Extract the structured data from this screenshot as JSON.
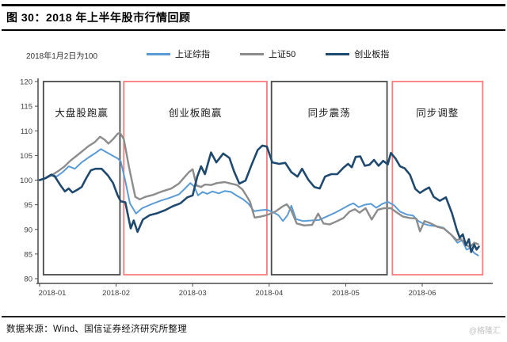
{
  "header": {
    "title": "图 30：2018 年上半年股市行情回顾"
  },
  "footer": {
    "source": "数据来源：Wind、国信证券经济研究所整理",
    "watermark": "@格隆汇"
  },
  "chart_data": {
    "type": "line",
    "title": "2018 年上半年股市行情回顾",
    "note": "2018年1月2日为100",
    "x_unit": "months since 2018-01-02 (0 = 2018-01, 5 = 2018-06)",
    "x_tick_labels": [
      "2018-01",
      "2018-02",
      "2018-03",
      "2018-04",
      "2018-05",
      "2018-06"
    ],
    "y_ticks": [
      80,
      85,
      90,
      95,
      100,
      105,
      110,
      115,
      120
    ],
    "ylim": [
      80,
      120
    ],
    "xlim": [
      0,
      5.9
    ],
    "grid": false,
    "legend_position": "top",
    "axis_color": "#4a4a4a",
    "annotations": [
      {
        "label": "大盘股跑赢",
        "x0": 0.05,
        "x1": 1.05,
        "border_color": "#4a4a4a"
      },
      {
        "label": "创业板跑赢",
        "x0": 1.1,
        "x1": 2.97,
        "border_color": "#f97c7c"
      },
      {
        "label": "同步震荡",
        "x0": 3.03,
        "x1": 4.54,
        "border_color": "#4a4a4a"
      },
      {
        "label": "同步调整",
        "x0": 4.61,
        "x1": 5.79,
        "border_color": "#f97c7c"
      }
    ],
    "series": [
      {
        "name": "上证综指",
        "color": "#5b9bd5",
        "width": 2,
        "points": [
          [
            0.0,
            100.0
          ],
          [
            0.08,
            100.5
          ],
          [
            0.16,
            101.2
          ],
          [
            0.22,
            100.7
          ],
          [
            0.3,
            101.6
          ],
          [
            0.38,
            102.8
          ],
          [
            0.46,
            102.3
          ],
          [
            0.55,
            103.6
          ],
          [
            0.64,
            104.6
          ],
          [
            0.72,
            105.4
          ],
          [
            0.8,
            106.3
          ],
          [
            0.88,
            105.6
          ],
          [
            0.96,
            104.9
          ],
          [
            1.02,
            104.4
          ],
          [
            1.06,
            103.8
          ],
          [
            1.12,
            99.8
          ],
          [
            1.18,
            95.3
          ],
          [
            1.26,
            93.2
          ],
          [
            1.34,
            94.3
          ],
          [
            1.46,
            95.1
          ],
          [
            1.58,
            95.8
          ],
          [
            1.7,
            96.4
          ],
          [
            1.82,
            97.1
          ],
          [
            1.9,
            98.3
          ],
          [
            1.97,
            99.4
          ],
          [
            2.02,
            98.7
          ],
          [
            2.07,
            96.9
          ],
          [
            2.13,
            97.6
          ],
          [
            2.19,
            97.2
          ],
          [
            2.26,
            97.7
          ],
          [
            2.34,
            97.3
          ],
          [
            2.42,
            97.8
          ],
          [
            2.5,
            97.6
          ],
          [
            2.58,
            96.8
          ],
          [
            2.66,
            96.1
          ],
          [
            2.73,
            95.2
          ],
          [
            2.8,
            93.7
          ],
          [
            2.89,
            93.9
          ],
          [
            2.97,
            94.0
          ],
          [
            3.05,
            93.5
          ],
          [
            3.12,
            92.9
          ],
          [
            3.18,
            91.7
          ],
          [
            3.24,
            92.9
          ],
          [
            3.29,
            94.8
          ],
          [
            3.35,
            92.1
          ],
          [
            3.44,
            91.7
          ],
          [
            3.55,
            91.8
          ],
          [
            3.65,
            91.9
          ],
          [
            3.75,
            92.6
          ],
          [
            3.85,
            93.3
          ],
          [
            3.96,
            94.2
          ],
          [
            4.04,
            94.9
          ],
          [
            4.1,
            95.3
          ],
          [
            4.17,
            94.5
          ],
          [
            4.25,
            95.0
          ],
          [
            4.33,
            95.2
          ],
          [
            4.4,
            94.4
          ],
          [
            4.48,
            95.2
          ],
          [
            4.55,
            95.6
          ],
          [
            4.63,
            94.9
          ],
          [
            4.71,
            93.6
          ],
          [
            4.8,
            93.0
          ],
          [
            4.88,
            92.8
          ],
          [
            4.95,
            91.7
          ],
          [
            5.02,
            91.1
          ],
          [
            5.1,
            90.8
          ],
          [
            5.2,
            90.6
          ],
          [
            5.28,
            90.3
          ],
          [
            5.38,
            88.9
          ],
          [
            5.46,
            87.3
          ],
          [
            5.52,
            87.8
          ],
          [
            5.58,
            85.9
          ],
          [
            5.63,
            86.2
          ],
          [
            5.68,
            85.2
          ],
          [
            5.73,
            84.7
          ]
        ]
      },
      {
        "name": "上证50",
        "color": "#8c8c8c",
        "width": 2.4,
        "points": [
          [
            0.0,
            100.0
          ],
          [
            0.08,
            100.4
          ],
          [
            0.16,
            101.0
          ],
          [
            0.24,
            101.8
          ],
          [
            0.32,
            102.7
          ],
          [
            0.4,
            103.9
          ],
          [
            0.48,
            104.9
          ],
          [
            0.56,
            105.9
          ],
          [
            0.64,
            106.9
          ],
          [
            0.72,
            107.7
          ],
          [
            0.79,
            108.8
          ],
          [
            0.85,
            108.2
          ],
          [
            0.9,
            107.4
          ],
          [
            0.96,
            108.3
          ],
          [
            1.02,
            109.4
          ],
          [
            1.05,
            109.6
          ],
          [
            1.1,
            108.3
          ],
          [
            1.17,
            102.5
          ],
          [
            1.25,
            96.6
          ],
          [
            1.31,
            96.1
          ],
          [
            1.38,
            96.6
          ],
          [
            1.48,
            97.0
          ],
          [
            1.6,
            97.7
          ],
          [
            1.72,
            98.3
          ],
          [
            1.82,
            99.3
          ],
          [
            1.9,
            100.7
          ],
          [
            1.95,
            101.6
          ],
          [
            2.0,
            102.2
          ],
          [
            2.05,
            98.9
          ],
          [
            2.11,
            98.6
          ],
          [
            2.16,
            99.1
          ],
          [
            2.24,
            99.0
          ],
          [
            2.32,
            99.4
          ],
          [
            2.42,
            99.6
          ],
          [
            2.5,
            99.3
          ],
          [
            2.58,
            99.0
          ],
          [
            2.65,
            98.1
          ],
          [
            2.7,
            96.9
          ],
          [
            2.75,
            95.6
          ],
          [
            2.81,
            92.4
          ],
          [
            2.89,
            92.6
          ],
          [
            2.97,
            92.9
          ],
          [
            3.08,
            93.6
          ],
          [
            3.17,
            94.6
          ],
          [
            3.23,
            95.1
          ],
          [
            3.29,
            93.8
          ],
          [
            3.36,
            91.2
          ],
          [
            3.46,
            90.8
          ],
          [
            3.56,
            90.9
          ],
          [
            3.64,
            93.2
          ],
          [
            3.71,
            91.2
          ],
          [
            3.79,
            91.0
          ],
          [
            3.89,
            91.7
          ],
          [
            3.97,
            92.3
          ],
          [
            4.05,
            93.6
          ],
          [
            4.12,
            94.1
          ],
          [
            4.18,
            93.4
          ],
          [
            4.26,
            94.3
          ],
          [
            4.34,
            92.0
          ],
          [
            4.42,
            94.0
          ],
          [
            4.5,
            94.3
          ],
          [
            4.59,
            94.3
          ],
          [
            4.67,
            93.4
          ],
          [
            4.75,
            92.6
          ],
          [
            4.84,
            92.3
          ],
          [
            4.92,
            92.2
          ],
          [
            4.97,
            89.6
          ],
          [
            5.03,
            91.7
          ],
          [
            5.1,
            91.3
          ],
          [
            5.2,
            90.5
          ],
          [
            5.28,
            90.2
          ],
          [
            5.38,
            88.9
          ],
          [
            5.45,
            87.8
          ],
          [
            5.5,
            88.1
          ],
          [
            5.57,
            86.9
          ],
          [
            5.62,
            86.4
          ],
          [
            5.68,
            87.3
          ],
          [
            5.73,
            87.0
          ]
        ]
      },
      {
        "name": "创业板指",
        "color": "#1f496e",
        "width": 2.6,
        "points": [
          [
            0.0,
            100.0
          ],
          [
            0.08,
            100.4
          ],
          [
            0.15,
            101.1
          ],
          [
            0.2,
            100.7
          ],
          [
            0.27,
            99.0
          ],
          [
            0.33,
            97.7
          ],
          [
            0.38,
            98.3
          ],
          [
            0.43,
            97.5
          ],
          [
            0.49,
            98.0
          ],
          [
            0.55,
            98.6
          ],
          [
            0.61,
            100.4
          ],
          [
            0.67,
            102.0
          ],
          [
            0.73,
            102.3
          ],
          [
            0.81,
            102.3
          ],
          [
            0.89,
            101.0
          ],
          [
            0.96,
            99.4
          ],
          [
            1.02,
            96.9
          ],
          [
            1.06,
            95.7
          ],
          [
            1.12,
            95.5
          ],
          [
            1.19,
            90.2
          ],
          [
            1.23,
            91.8
          ],
          [
            1.28,
            89.5
          ],
          [
            1.35,
            92.0
          ],
          [
            1.44,
            92.9
          ],
          [
            1.54,
            93.3
          ],
          [
            1.64,
            93.9
          ],
          [
            1.74,
            94.7
          ],
          [
            1.84,
            95.3
          ],
          [
            1.93,
            96.5
          ],
          [
            2.0,
            96.9
          ],
          [
            2.06,
            100.7
          ],
          [
            2.11,
            102.8
          ],
          [
            2.16,
            101.2
          ],
          [
            2.24,
            105.6
          ],
          [
            2.31,
            103.6
          ],
          [
            2.4,
            105.4
          ],
          [
            2.48,
            104.5
          ],
          [
            2.54,
            101.8
          ],
          [
            2.61,
            99.3
          ],
          [
            2.69,
            99.9
          ],
          [
            2.77,
            103.1
          ],
          [
            2.85,
            106.1
          ],
          [
            2.91,
            107.0
          ],
          [
            2.97,
            106.8
          ],
          [
            3.04,
            103.6
          ],
          [
            3.13,
            103.3
          ],
          [
            3.21,
            103.5
          ],
          [
            3.29,
            101.6
          ],
          [
            3.37,
            100.7
          ],
          [
            3.43,
            102.3
          ],
          [
            3.51,
            100.1
          ],
          [
            3.59,
            98.6
          ],
          [
            3.66,
            98.3
          ],
          [
            3.73,
            100.7
          ],
          [
            3.81,
            101.2
          ],
          [
            3.89,
            101.2
          ],
          [
            3.97,
            102.5
          ],
          [
            4.03,
            103.3
          ],
          [
            4.08,
            102.6
          ],
          [
            4.13,
            104.7
          ],
          [
            4.19,
            104.8
          ],
          [
            4.25,
            102.9
          ],
          [
            4.31,
            103.1
          ],
          [
            4.37,
            104.1
          ],
          [
            4.43,
            102.9
          ],
          [
            4.49,
            103.9
          ],
          [
            4.55,
            103.2
          ],
          [
            4.59,
            105.5
          ],
          [
            4.65,
            104.4
          ],
          [
            4.71,
            102.8
          ],
          [
            4.77,
            102.4
          ],
          [
            4.84,
            101.1
          ],
          [
            4.91,
            98.2
          ],
          [
            4.97,
            97.4
          ],
          [
            5.03,
            98.0
          ],
          [
            5.09,
            98.5
          ],
          [
            5.15,
            96.6
          ],
          [
            5.23,
            95.8
          ],
          [
            5.31,
            96.5
          ],
          [
            5.39,
            93.2
          ],
          [
            5.45,
            90.0
          ],
          [
            5.49,
            88.3
          ],
          [
            5.53,
            89.0
          ],
          [
            5.57,
            86.8
          ],
          [
            5.61,
            88.0
          ],
          [
            5.64,
            85.4
          ],
          [
            5.68,
            86.9
          ],
          [
            5.71,
            85.9
          ],
          [
            5.74,
            86.5
          ]
        ]
      }
    ]
  }
}
